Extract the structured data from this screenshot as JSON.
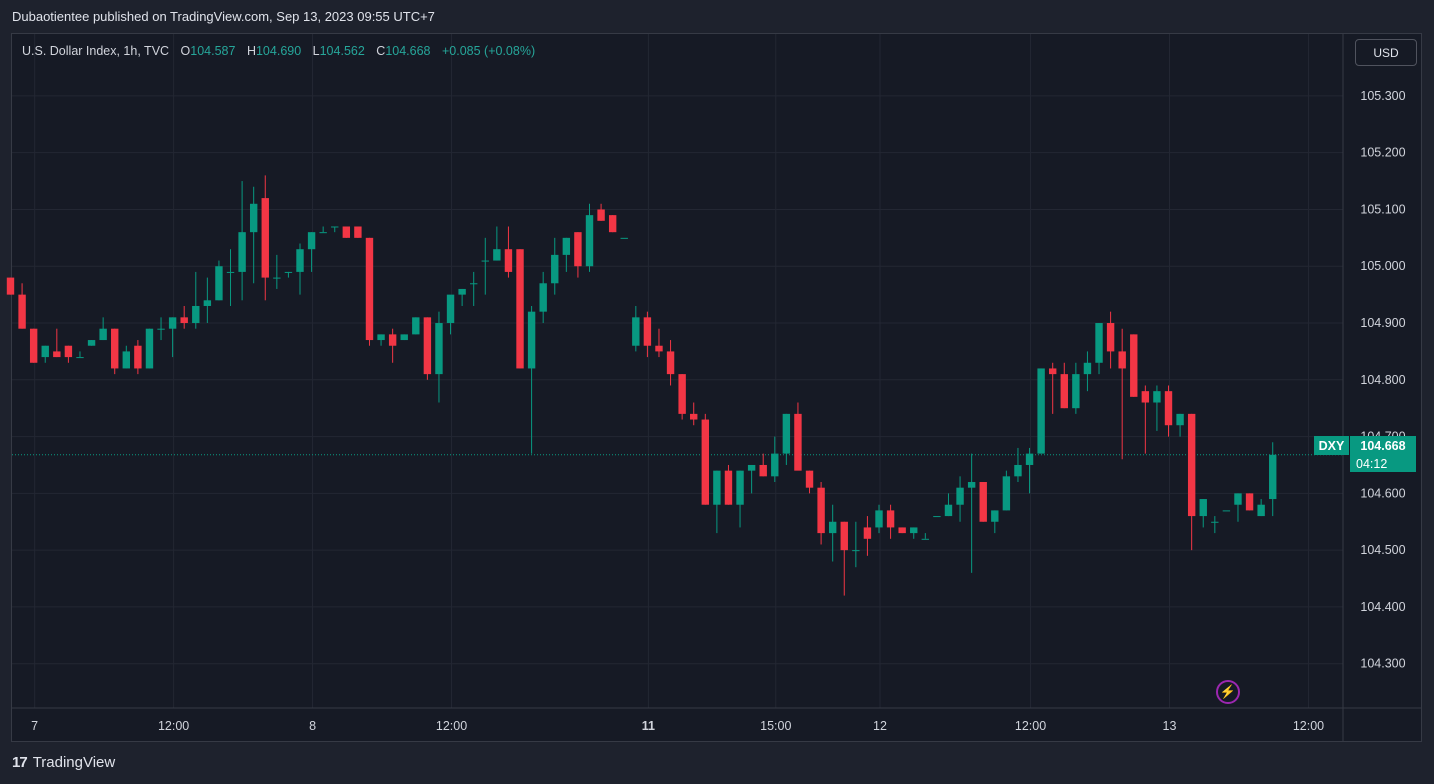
{
  "header": {
    "published_text": "Dubaotientee published on TradingView.com, Sep 13, 2023 09:55 UTC+7"
  },
  "legend": {
    "symbol_text": "U.S. Dollar Index, 1h, TVC",
    "open_label": "O",
    "open_value": "104.587",
    "high_label": "H",
    "high_value": "104.690",
    "low_label": "L",
    "low_value": "104.562",
    "close_label": "C",
    "close_value": "104.668",
    "change": "+0.085 (+0.08%)"
  },
  "currency_button": "USD",
  "last_price": {
    "symbol": "DXY",
    "price": "104.668",
    "timer": "04:12"
  },
  "footer": {
    "brand": "TradingView"
  },
  "colors": {
    "up": "#089981",
    "down": "#f23645",
    "background": "#161a25",
    "grid": "#232733"
  },
  "chart_data": {
    "type": "candlestick",
    "title": "U.S. Dollar Index, 1h, TVC",
    "y_ticks": [
      "105.300",
      "105.200",
      "105.100",
      "105.000",
      "104.900",
      "104.800",
      "104.700",
      "104.600",
      "104.500",
      "104.400",
      "104.300"
    ],
    "ylim": [
      104.222,
      105.409
    ],
    "x_ticks": [
      {
        "label": "7",
        "bar": 2,
        "bold": false
      },
      {
        "label": "12:00",
        "bar": 14,
        "bold": false
      },
      {
        "label": "8",
        "bar": 26,
        "bold": false
      },
      {
        "label": "12:00",
        "bar": 38,
        "bold": false
      },
      {
        "label": "11",
        "bar": 55,
        "bold": true
      },
      {
        "label": "15:00",
        "bar": 66,
        "bold": false
      },
      {
        "label": "12",
        "bar": 75,
        "bold": false
      },
      {
        "label": "12:00",
        "bar": 88,
        "bold": false
      },
      {
        "label": "13",
        "bar": 100,
        "bold": false
      },
      {
        "label": "12:00",
        "bar": 112,
        "bold": false
      }
    ],
    "candles": [
      [
        104.98,
        104.98,
        104.95,
        104.95
      ],
      [
        104.95,
        104.97,
        104.89,
        104.89
      ],
      [
        104.89,
        104.89,
        104.83,
        104.83
      ],
      [
        104.84,
        104.86,
        104.83,
        104.86
      ],
      [
        104.85,
        104.89,
        104.84,
        104.84
      ],
      [
        104.86,
        104.86,
        104.83,
        104.84
      ],
      [
        104.84,
        104.85,
        104.84,
        104.84
      ],
      [
        104.86,
        104.87,
        104.86,
        104.87
      ],
      [
        104.87,
        104.91,
        104.87,
        104.89
      ],
      [
        104.89,
        104.89,
        104.81,
        104.82
      ],
      [
        104.82,
        104.86,
        104.82,
        104.85
      ],
      [
        104.86,
        104.87,
        104.81,
        104.82
      ],
      [
        104.82,
        104.89,
        104.82,
        104.89
      ],
      [
        104.89,
        104.91,
        104.87,
        104.89
      ],
      [
        104.89,
        104.91,
        104.84,
        104.91
      ],
      [
        104.91,
        104.93,
        104.89,
        104.9
      ],
      [
        104.9,
        104.99,
        104.89,
        104.93
      ],
      [
        104.93,
        104.98,
        104.9,
        104.94
      ],
      [
        104.94,
        105.01,
        104.94,
        105.0
      ],
      [
        104.99,
        105.03,
        104.93,
        104.99
      ],
      [
        104.99,
        105.15,
        104.94,
        105.06
      ],
      [
        105.06,
        105.14,
        104.97,
        105.11
      ],
      [
        105.12,
        105.16,
        104.94,
        104.98
      ],
      [
        104.98,
        105.02,
        104.96,
        104.98
      ],
      [
        104.99,
        104.99,
        104.98,
        104.99
      ],
      [
        104.99,
        105.04,
        104.95,
        105.03
      ],
      [
        105.03,
        105.06,
        104.99,
        105.06
      ],
      [
        105.06,
        105.07,
        105.06,
        105.06
      ],
      [
        105.07,
        105.07,
        105.06,
        105.07
      ],
      [
        105.07,
        105.07,
        105.05,
        105.05
      ],
      [
        105.07,
        105.07,
        105.05,
        105.05
      ],
      [
        105.05,
        105.05,
        104.86,
        104.87
      ],
      [
        104.87,
        104.88,
        104.86,
        104.88
      ],
      [
        104.88,
        104.89,
        104.83,
        104.86
      ],
      [
        104.87,
        104.88,
        104.87,
        104.88
      ],
      [
        104.88,
        104.91,
        104.88,
        104.91
      ],
      [
        104.91,
        104.91,
        104.8,
        104.81
      ],
      [
        104.81,
        104.92,
        104.76,
        104.9
      ],
      [
        104.9,
        104.94,
        104.88,
        104.95
      ],
      [
        104.95,
        104.96,
        104.93,
        104.96
      ],
      [
        104.97,
        104.99,
        104.93,
        104.97
      ],
      [
        105.01,
        105.05,
        104.95,
        105.01
      ],
      [
        105.01,
        105.07,
        105.01,
        105.03
      ],
      [
        105.03,
        105.07,
        104.98,
        104.99
      ],
      [
        105.03,
        105.03,
        104.82,
        104.82
      ],
      [
        104.82,
        104.93,
        104.67,
        104.92
      ],
      [
        104.92,
        104.99,
        104.9,
        104.97
      ],
      [
        104.97,
        105.05,
        104.95,
        105.02
      ],
      [
        105.02,
        105.05,
        104.99,
        105.05
      ],
      [
        105.06,
        105.06,
        104.98,
        105.0
      ],
      [
        105.0,
        105.11,
        104.99,
        105.09
      ],
      [
        105.1,
        105.11,
        105.08,
        105.08
      ],
      [
        105.09,
        105.09,
        105.06,
        105.06
      ],
      [
        105.05,
        105.05,
        105.05,
        105.05
      ],
      [
        104.86,
        104.93,
        104.85,
        104.91
      ],
      [
        104.91,
        104.92,
        104.84,
        104.86
      ],
      [
        104.86,
        104.89,
        104.84,
        104.85
      ],
      [
        104.85,
        104.87,
        104.79,
        104.81
      ],
      [
        104.81,
        104.81,
        104.73,
        104.74
      ],
      [
        104.74,
        104.76,
        104.72,
        104.73
      ],
      [
        104.73,
        104.74,
        104.58,
        104.58
      ],
      [
        104.58,
        104.64,
        104.53,
        104.64
      ],
      [
        104.64,
        104.65,
        104.58,
        104.58
      ],
      [
        104.58,
        104.64,
        104.54,
        104.64
      ],
      [
        104.64,
        104.65,
        104.6,
        104.65
      ],
      [
        104.65,
        104.67,
        104.63,
        104.63
      ],
      [
        104.63,
        104.7,
        104.62,
        104.67
      ],
      [
        104.67,
        104.74,
        104.65,
        104.74
      ],
      [
        104.74,
        104.76,
        104.65,
        104.64
      ],
      [
        104.64,
        104.64,
        104.6,
        104.61
      ],
      [
        104.61,
        104.62,
        104.51,
        104.53
      ],
      [
        104.53,
        104.58,
        104.48,
        104.55
      ],
      [
        104.55,
        104.55,
        104.42,
        104.5
      ],
      [
        104.5,
        104.55,
        104.47,
        104.5
      ],
      [
        104.54,
        104.56,
        104.49,
        104.52
      ],
      [
        104.54,
        104.58,
        104.53,
        104.57
      ],
      [
        104.57,
        104.58,
        104.52,
        104.54
      ],
      [
        104.54,
        104.54,
        104.53,
        104.53
      ],
      [
        104.53,
        104.54,
        104.52,
        104.54
      ],
      [
        104.52,
        104.53,
        104.52,
        104.52
      ],
      [
        104.56,
        104.56,
        104.56,
        104.56
      ],
      [
        104.56,
        104.6,
        104.56,
        104.58
      ],
      [
        104.58,
        104.63,
        104.55,
        104.61
      ],
      [
        104.61,
        104.67,
        104.46,
        104.62
      ],
      [
        104.62,
        104.62,
        104.55,
        104.55
      ],
      [
        104.55,
        104.57,
        104.53,
        104.57
      ],
      [
        104.57,
        104.64,
        104.57,
        104.63
      ],
      [
        104.63,
        104.68,
        104.62,
        104.65
      ],
      [
        104.65,
        104.68,
        104.6,
        104.67
      ],
      [
        104.67,
        104.82,
        104.67,
        104.82
      ],
      [
        104.82,
        104.83,
        104.74,
        104.81
      ],
      [
        104.81,
        104.83,
        104.75,
        104.75
      ],
      [
        104.75,
        104.83,
        104.74,
        104.81
      ],
      [
        104.81,
        104.85,
        104.78,
        104.83
      ],
      [
        104.83,
        104.9,
        104.81,
        104.9
      ],
      [
        104.9,
        104.92,
        104.82,
        104.85
      ],
      [
        104.85,
        104.89,
        104.66,
        104.82
      ],
      [
        104.88,
        104.88,
        104.77,
        104.77
      ],
      [
        104.78,
        104.79,
        104.67,
        104.76
      ],
      [
        104.76,
        104.79,
        104.71,
        104.78
      ],
      [
        104.78,
        104.79,
        104.7,
        104.72
      ],
      [
        104.72,
        104.74,
        104.7,
        104.74
      ],
      [
        104.74,
        104.74,
        104.5,
        104.56
      ],
      [
        104.56,
        104.59,
        104.54,
        104.59
      ],
      [
        104.55,
        104.56,
        104.53,
        104.55
      ],
      [
        104.57,
        104.57,
        104.57,
        104.57
      ],
      [
        104.58,
        104.6,
        104.55,
        104.6
      ],
      [
        104.6,
        104.6,
        104.57,
        104.57
      ],
      [
        104.56,
        104.59,
        104.56,
        104.58
      ],
      [
        104.59,
        104.69,
        104.56,
        104.668
      ]
    ]
  }
}
